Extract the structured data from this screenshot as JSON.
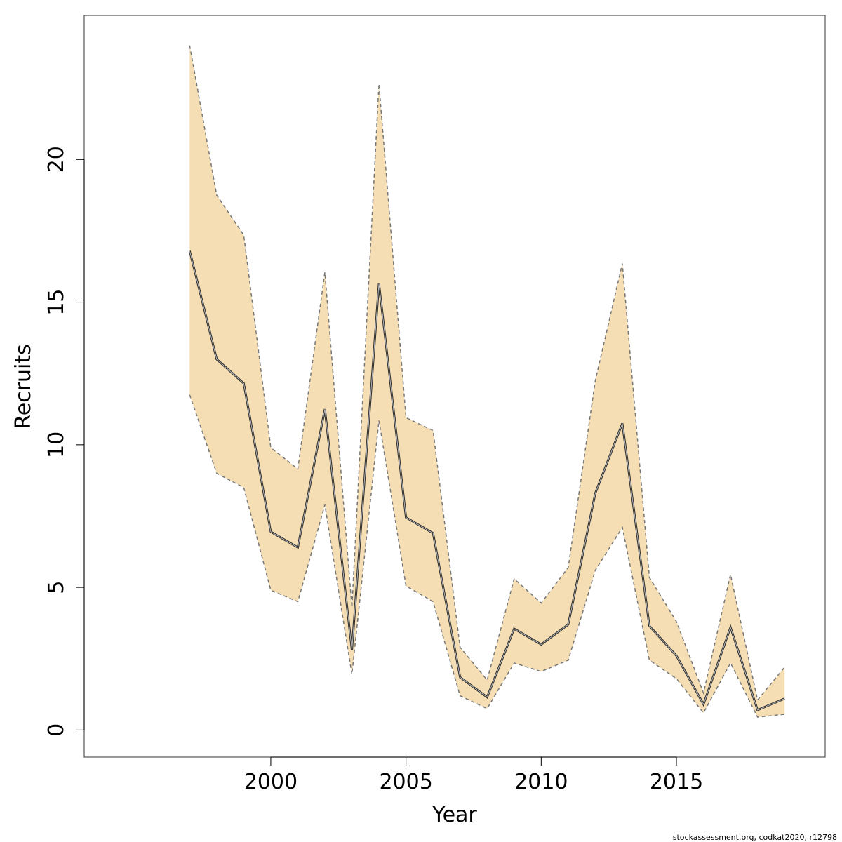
{
  "footnote": "stockassessment.org, codkat2020, r12798",
  "chart_data": {
    "type": "line",
    "title": "",
    "xlabel": "Year",
    "ylabel": "Recruits",
    "xlim": [
      1993.1,
      2020.5
    ],
    "ylim": [
      -0.95,
      25.05
    ],
    "xticks": [
      2000,
      2005,
      2010,
      2015
    ],
    "yticks": [
      0,
      5,
      10,
      15,
      20
    ],
    "x": [
      1997,
      1998,
      1999,
      2000,
      2001,
      2002,
      2003,
      2004,
      2005,
      2006,
      2007,
      2008,
      2009,
      2010,
      2011,
      2012,
      2013,
      2014,
      2015,
      2016,
      2017,
      2018,
      2019
    ],
    "series": [
      {
        "role": "estimate",
        "values": [
          16.8,
          13.0,
          12.15,
          6.95,
          6.4,
          11.25,
          2.8,
          15.65,
          7.45,
          6.9,
          1.85,
          1.15,
          3.55,
          3.0,
          3.7,
          8.3,
          10.75,
          3.65,
          2.6,
          0.9,
          3.6,
          0.7,
          1.1
        ]
      },
      {
        "role": "upper",
        "values": [
          24.0,
          18.75,
          17.35,
          9.9,
          9.15,
          16.05,
          4.3,
          22.65,
          10.95,
          10.5,
          2.9,
          1.75,
          5.3,
          4.45,
          5.7,
          12.25,
          16.35,
          5.35,
          3.8,
          1.3,
          5.45,
          1.05,
          2.2
        ]
      },
      {
        "role": "lower",
        "values": [
          11.75,
          9.0,
          8.5,
          4.9,
          4.5,
          7.9,
          1.95,
          10.85,
          5.05,
          4.5,
          1.2,
          0.75,
          2.35,
          2.05,
          2.45,
          5.6,
          7.1,
          2.45,
          1.8,
          0.6,
          2.35,
          0.45,
          0.55
        ]
      }
    ],
    "colors": {
      "band": "#f5deb3",
      "band_edge": "#777777",
      "line": "#333333",
      "frame": "#555555"
    },
    "grid": false,
    "legend": "none"
  }
}
